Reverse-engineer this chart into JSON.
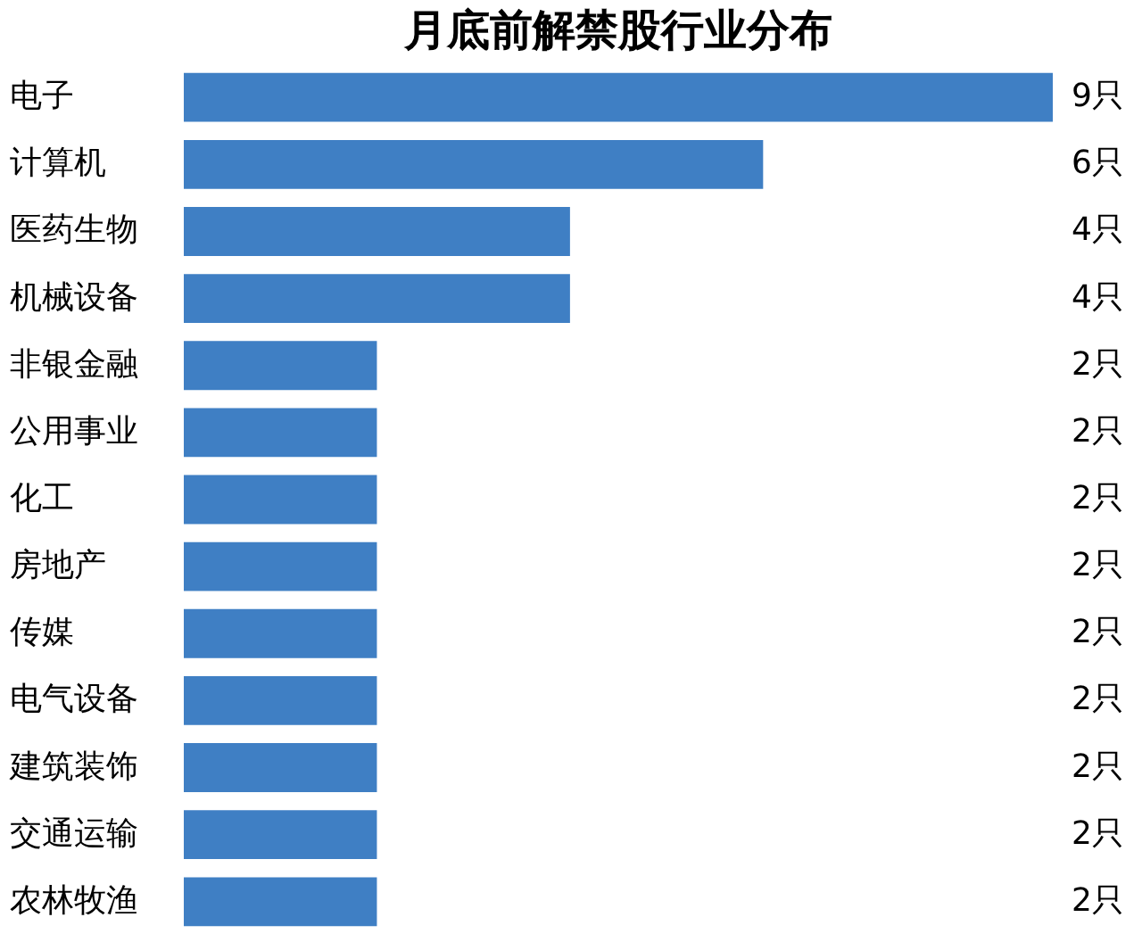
{
  "chart_data": {
    "type": "bar",
    "orientation": "horizontal",
    "title": "月底前解禁股行业分布",
    "categories": [
      "电子",
      "计算机",
      "医药生物",
      "机械设备",
      "非银金融",
      "公用事业",
      "化工",
      "房地产",
      "传媒",
      "电气设备",
      "建筑装饰",
      "交通运输",
      "农林牧渔"
    ],
    "values": [
      9,
      6,
      4,
      4,
      2,
      2,
      2,
      2,
      2,
      2,
      2,
      2,
      2
    ],
    "value_labels": [
      "9只",
      "6只",
      "4只",
      "4只",
      "2只",
      "2只",
      "2只",
      "2只",
      "2只",
      "2只",
      "2只",
      "2只",
      "2只"
    ],
    "color": "#3f7fc4"
  }
}
